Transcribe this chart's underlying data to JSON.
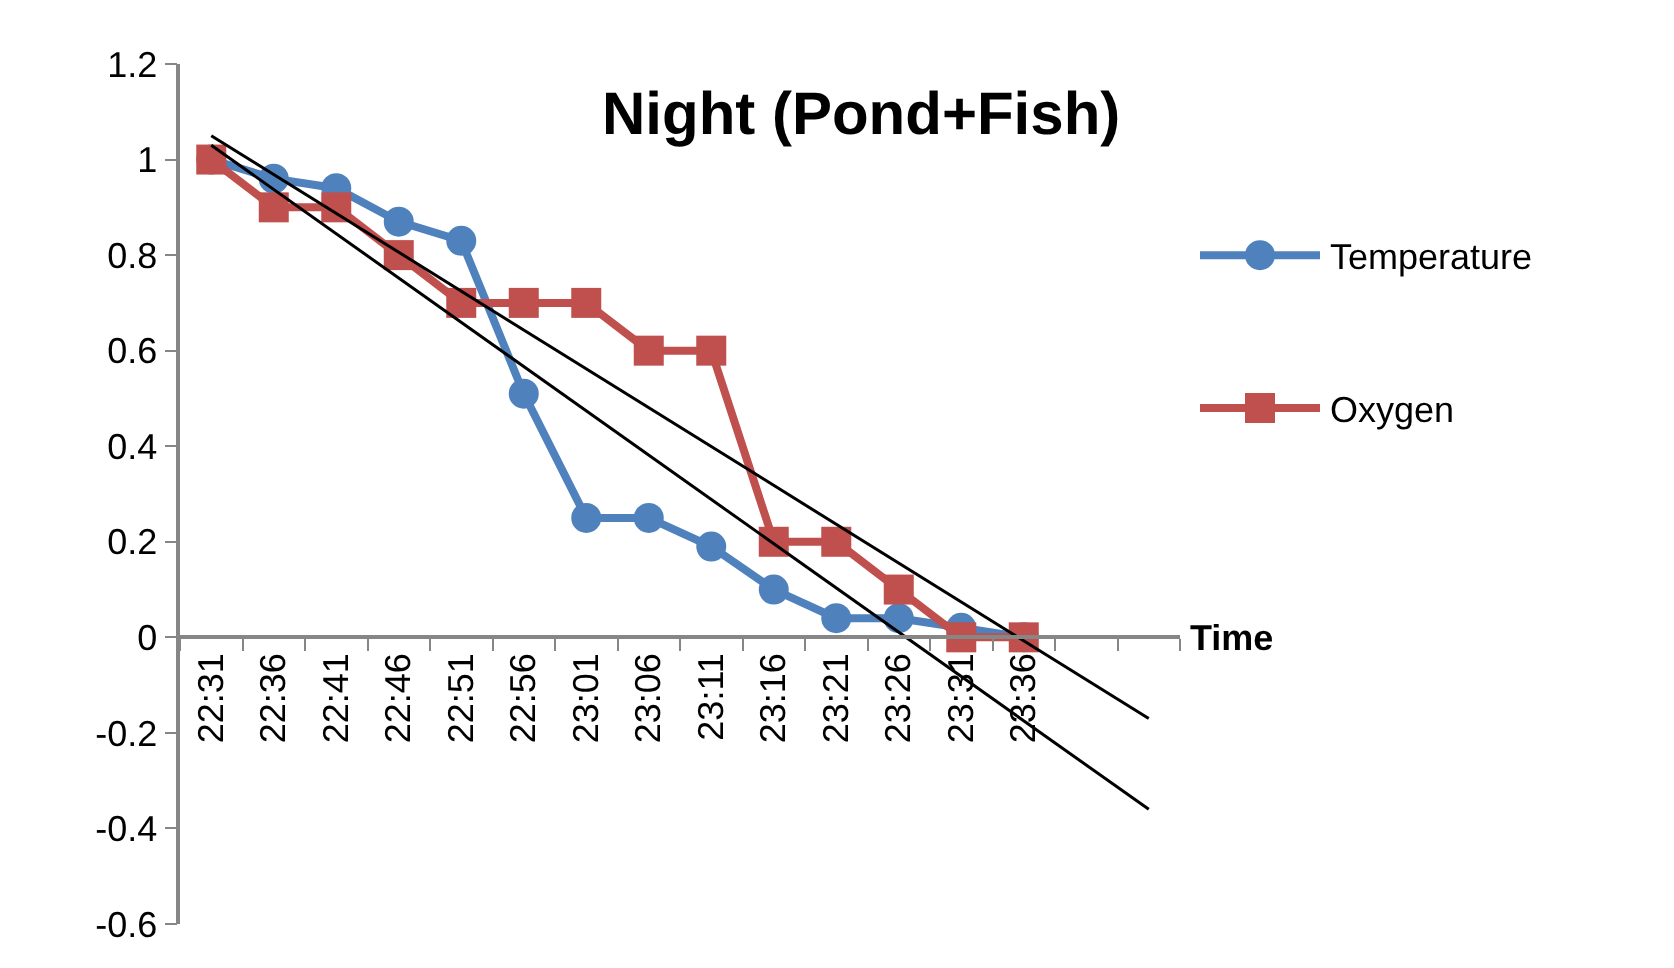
{
  "chart_data": {
    "type": "line",
    "title": "Night (Pond+Fish)",
    "xlabel": "Time",
    "categories": [
      "22:31",
      "22:36",
      "22:41",
      "22:46",
      "22:51",
      "22:56",
      "23:01",
      "23:06",
      "23:11",
      "23:16",
      "23:21",
      "23:26",
      "23:31",
      "23:36",
      null,
      null
    ],
    "series": [
      {
        "name": "Temperature",
        "color": "#4f81bd",
        "marker": "circle",
        "values": [
          1.0,
          0.96,
          0.94,
          0.87,
          0.83,
          0.51,
          0.25,
          0.25,
          0.19,
          0.1,
          0.04,
          0.04,
          0.02,
          0.0,
          null,
          null
        ]
      },
      {
        "name": "Oxygen",
        "color": "#c0504d",
        "marker": "square",
        "values": [
          1.0,
          0.9,
          0.9,
          0.8,
          0.7,
          0.7,
          0.7,
          0.6,
          0.6,
          0.2,
          0.2,
          0.1,
          0.0,
          0.0,
          null,
          null
        ]
      },
      {
        "color": "#000000",
        "marker": "none",
        "values": [
          1.05,
          null,
          null,
          null,
          null,
          null,
          null,
          null,
          null,
          null,
          null,
          null,
          null,
          null,
          null,
          -0.17
        ]
      },
      {
        "color": "#000000",
        "marker": "none",
        "values": [
          1.03,
          null,
          null,
          null,
          null,
          null,
          null,
          null,
          null,
          null,
          null,
          null,
          null,
          null,
          null,
          -0.36
        ]
      }
    ],
    "ylim": [
      -0.6,
      1.2
    ],
    "yticks": [
      -0.6,
      -0.4,
      -0.2,
      0,
      0.2,
      0.4,
      0.6,
      0.8,
      1,
      1.2
    ],
    "legend": "right"
  }
}
